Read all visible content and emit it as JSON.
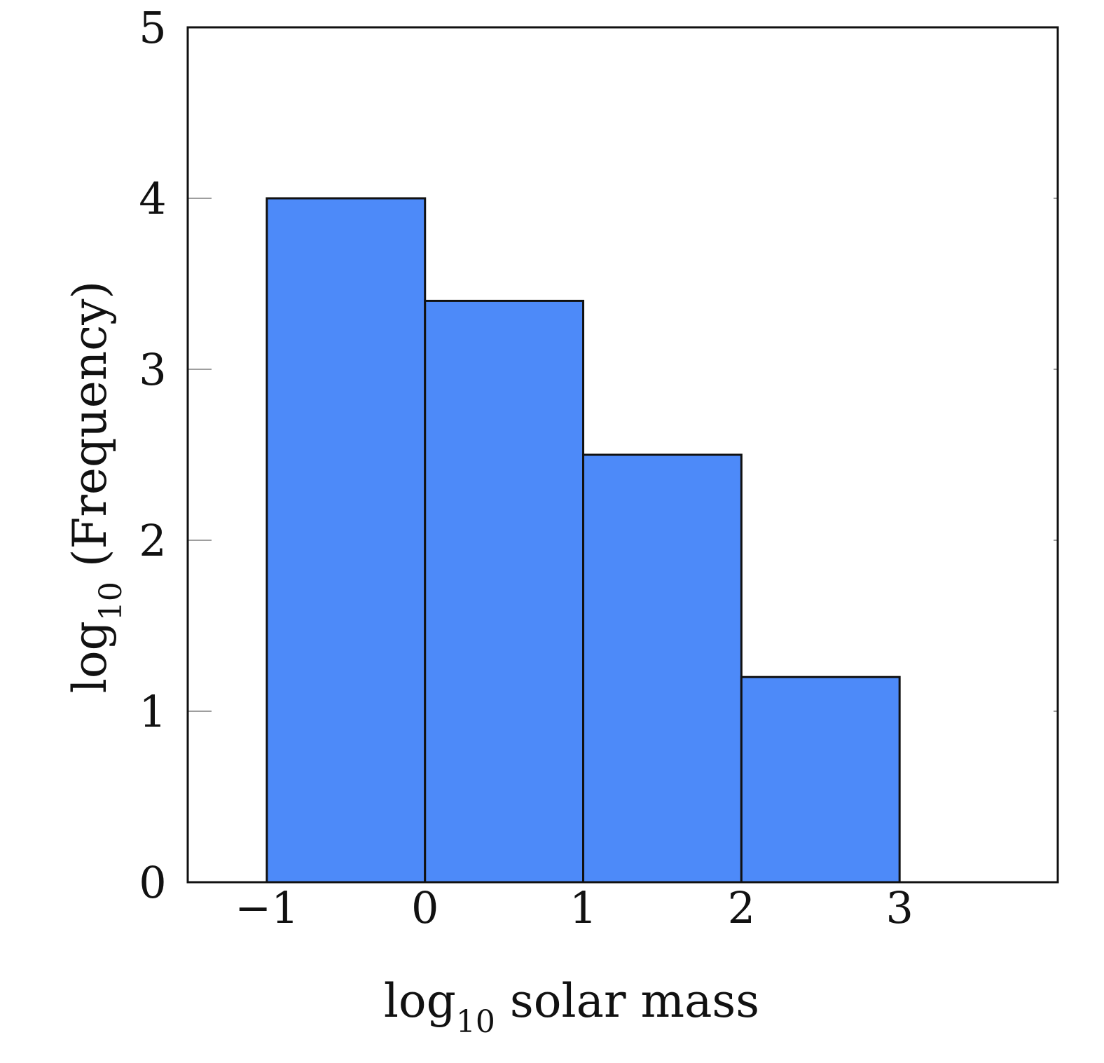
{
  "chart_data": {
    "type": "bar",
    "bins": [
      {
        "x0": -1,
        "x1": 0,
        "value": 4.0
      },
      {
        "x0": 0,
        "x1": 1,
        "value": 3.4
      },
      {
        "x0": 1,
        "x1": 2,
        "value": 2.5
      },
      {
        "x0": 2,
        "x1": 3,
        "value": 1.2
      }
    ],
    "xlim": [
      -1.5,
      4.0
    ],
    "ylim": [
      0,
      5
    ],
    "x_ticks": [
      -1,
      0,
      1,
      2,
      3
    ],
    "x_tick_labels": [
      "−1",
      "0",
      "1",
      "2",
      "3"
    ],
    "y_ticks": [
      0,
      1,
      2,
      3,
      4,
      5
    ],
    "y_tick_labels": [
      "0",
      "1",
      "2",
      "3",
      "4",
      "5"
    ],
    "xlabel": {
      "prefix": "log",
      "subscript": "10",
      "suffix": " solar mass"
    },
    "ylabel": {
      "prefix": "log",
      "subscript": "10",
      "suffix": " (Frequency)"
    },
    "title": "",
    "legend": null,
    "grid": false,
    "bar_color": "#4d8af9",
    "bar_edge_color": "#111111",
    "axis_color": "#111111",
    "tick_color": "#9e9e9e"
  }
}
